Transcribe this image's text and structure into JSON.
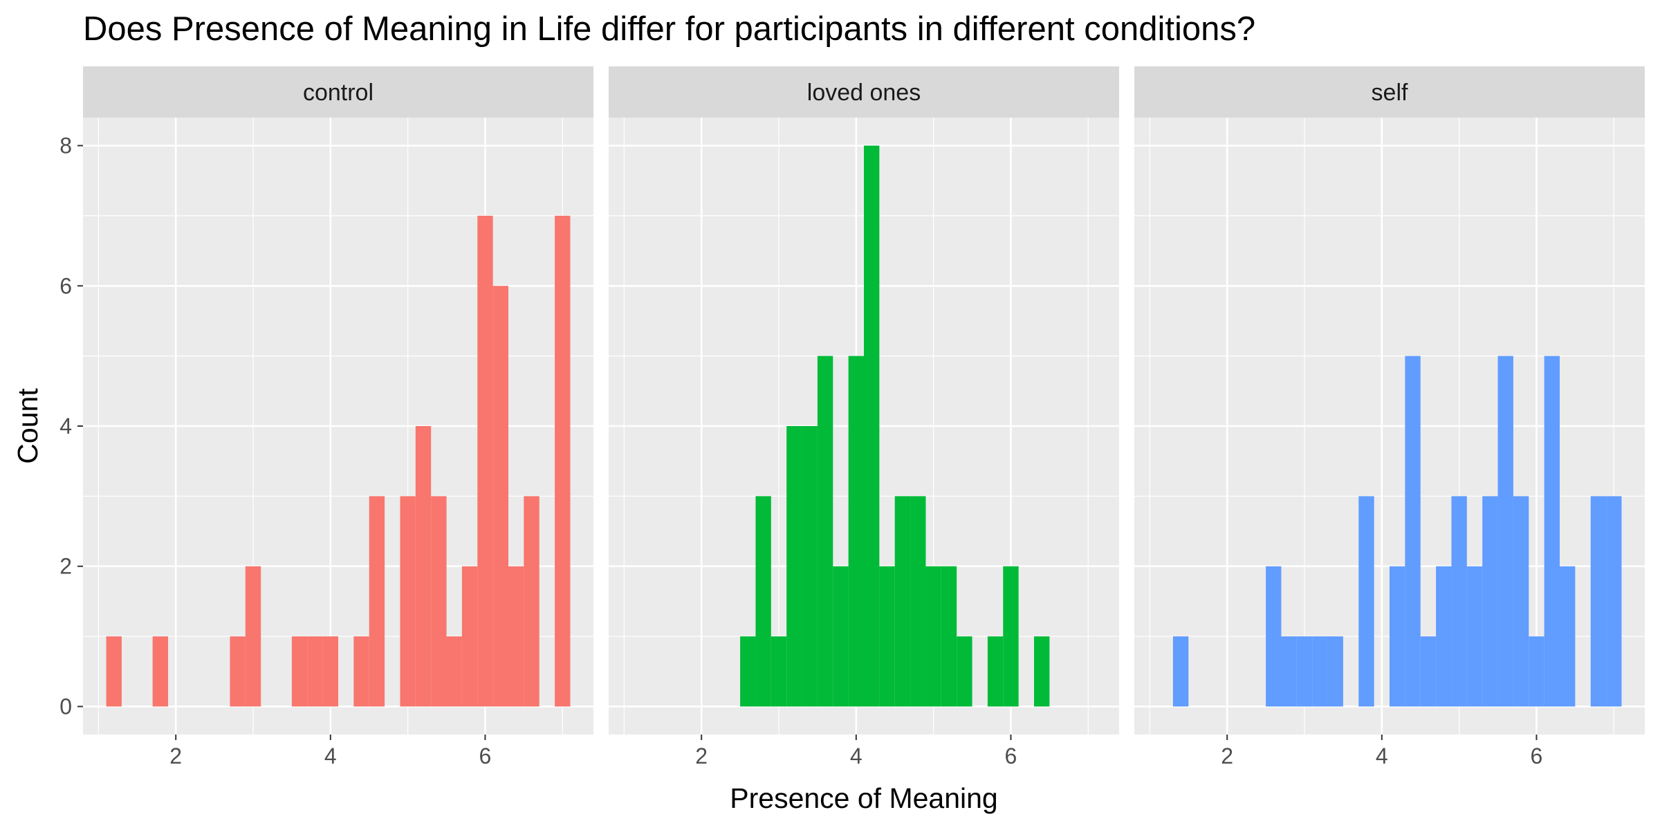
{
  "chart_data": {
    "type": "bar",
    "title": "Does Presence of Meaning in Life differ for participants in different conditions?",
    "xlabel": "Presence of Meaning",
    "ylabel": "Count",
    "xlim": [
      0.8,
      7.4
    ],
    "ylim": [
      -0.4,
      8.4
    ],
    "x_ticks": [
      2,
      4,
      6
    ],
    "y_ticks": [
      0,
      2,
      4,
      6,
      8
    ],
    "bin_width": 0.2,
    "grid": true,
    "facets": [
      {
        "name": "control",
        "color": "#F8766D",
        "bins": [
          {
            "x": 1.2,
            "count": 1
          },
          {
            "x": 1.8,
            "count": 1
          },
          {
            "x": 2.8,
            "count": 1
          },
          {
            "x": 3.0,
            "count": 2
          },
          {
            "x": 3.6,
            "count": 1
          },
          {
            "x": 3.8,
            "count": 1
          },
          {
            "x": 4.0,
            "count": 1
          },
          {
            "x": 4.4,
            "count": 1
          },
          {
            "x": 4.6,
            "count": 3
          },
          {
            "x": 5.0,
            "count": 3
          },
          {
            "x": 5.2,
            "count": 4
          },
          {
            "x": 5.4,
            "count": 3
          },
          {
            "x": 5.6,
            "count": 1
          },
          {
            "x": 5.8,
            "count": 2
          },
          {
            "x": 6.0,
            "count": 7
          },
          {
            "x": 6.2,
            "count": 6
          },
          {
            "x": 6.4,
            "count": 2
          },
          {
            "x": 6.6,
            "count": 3
          },
          {
            "x": 7.0,
            "count": 7
          }
        ]
      },
      {
        "name": "loved ones",
        "color": "#00BA38",
        "bins": [
          {
            "x": 2.6,
            "count": 1
          },
          {
            "x": 2.8,
            "count": 3
          },
          {
            "x": 3.0,
            "count": 1
          },
          {
            "x": 3.2,
            "count": 4
          },
          {
            "x": 3.4,
            "count": 4
          },
          {
            "x": 3.6,
            "count": 5
          },
          {
            "x": 3.8,
            "count": 2
          },
          {
            "x": 4.0,
            "count": 5
          },
          {
            "x": 4.2,
            "count": 8
          },
          {
            "x": 4.4,
            "count": 2
          },
          {
            "x": 4.6,
            "count": 3
          },
          {
            "x": 4.8,
            "count": 3
          },
          {
            "x": 5.0,
            "count": 2
          },
          {
            "x": 5.2,
            "count": 2
          },
          {
            "x": 5.4,
            "count": 1
          },
          {
            "x": 5.8,
            "count": 1
          },
          {
            "x": 6.0,
            "count": 2
          },
          {
            "x": 6.4,
            "count": 1
          }
        ]
      },
      {
        "name": "self",
        "color": "#619CFF",
        "bins": [
          {
            "x": 1.4,
            "count": 1
          },
          {
            "x": 2.6,
            "count": 2
          },
          {
            "x": 2.8,
            "count": 1
          },
          {
            "x": 3.0,
            "count": 1
          },
          {
            "x": 3.2,
            "count": 1
          },
          {
            "x": 3.4,
            "count": 1
          },
          {
            "x": 3.8,
            "count": 3
          },
          {
            "x": 4.2,
            "count": 2
          },
          {
            "x": 4.4,
            "count": 5
          },
          {
            "x": 4.6,
            "count": 1
          },
          {
            "x": 4.8,
            "count": 2
          },
          {
            "x": 5.0,
            "count": 3
          },
          {
            "x": 5.2,
            "count": 2
          },
          {
            "x": 5.4,
            "count": 3
          },
          {
            "x": 5.6,
            "count": 5
          },
          {
            "x": 5.8,
            "count": 3
          },
          {
            "x": 6.0,
            "count": 1
          },
          {
            "x": 6.2,
            "count": 5
          },
          {
            "x": 6.4,
            "count": 2
          },
          {
            "x": 6.8,
            "count": 3
          },
          {
            "x": 7.0,
            "count": 3
          }
        ]
      }
    ]
  }
}
